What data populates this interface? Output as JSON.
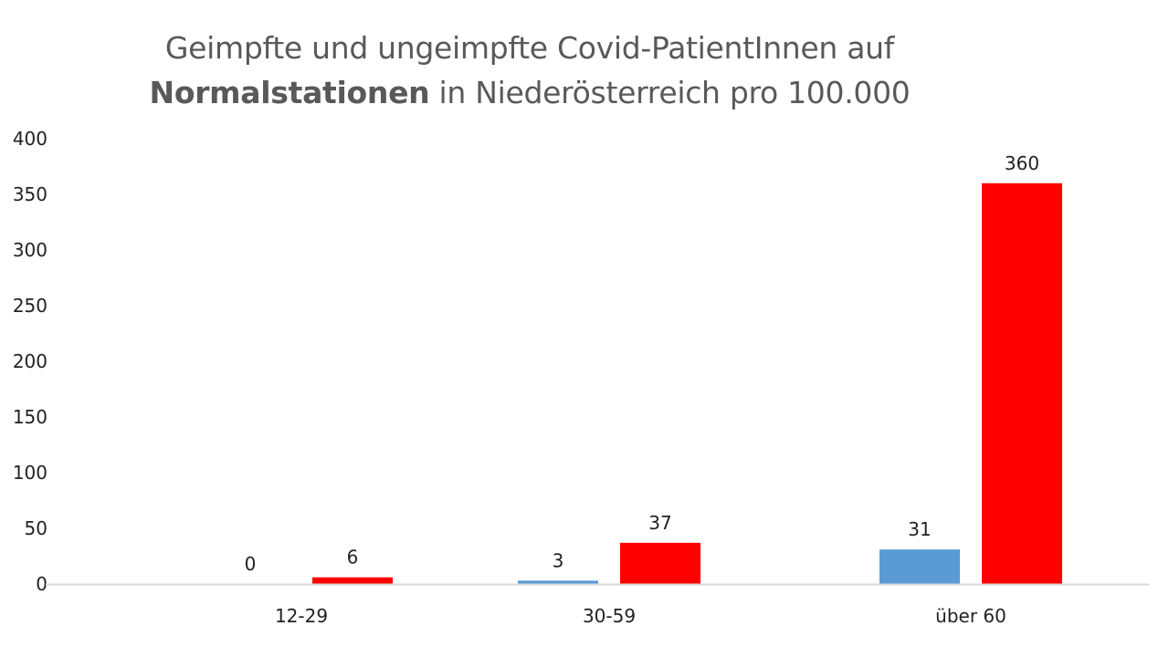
{
  "chart_data": {
    "type": "bar",
    "title_line1": "Geimpfte und ungeimpfte Covid-PatientInnen auf",
    "title_line2_bold": "Normalstationen",
    "title_line2_rest": " in Niederösterreich pro 100.000",
    "categories": [
      "12-29",
      "30-59",
      "über 60"
    ],
    "series": [
      {
        "values": [
          0,
          3,
          31
        ],
        "color": "#5b9bd5"
      },
      {
        "values": [
          6,
          37,
          360
        ],
        "color": "#ff0000"
      }
    ],
    "yticks": [
      "0",
      "50",
      "100",
      "150",
      "200",
      "250",
      "300",
      "350",
      "400"
    ],
    "ylim": [
      0,
      400
    ],
    "grid": false,
    "legend": "none",
    "axis_color": "#d9d9d9"
  }
}
